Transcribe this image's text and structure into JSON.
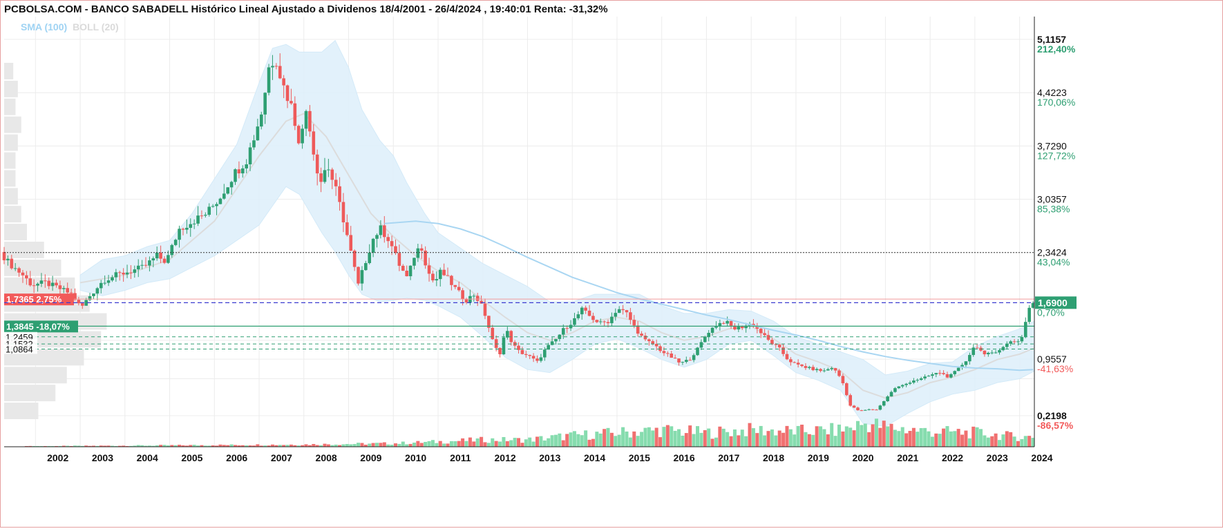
{
  "header": {
    "title": "PCBOLSA.COM - BANCO SABADELL Histórico Lineal Ajustado a Dividenos 18/4/2001 - 26/4/2024 , 19:40:01 Renta: -31,32%"
  },
  "legend": {
    "sma_label": "SMA (100)",
    "boll_label": "BOLL (20)"
  },
  "colors": {
    "up": "#2e9f72",
    "down": "#ee5a5a",
    "sma": "#a9d6f2",
    "band_fill": "#dff0fb",
    "band_mid": "#dcdcdc",
    "volume_up": "#86dcae",
    "volume_down": "#f07070",
    "grid": "#ececec",
    "blue_line": "#3a3ad0"
  },
  "chart_data": {
    "type": "candlestick",
    "title": "PCBOLSA.COM - BANCO SABADELL Histórico Lineal Ajustado a Dividenos 18/4/2001 - 26/4/2024 , 19:40:01 Renta: -31,32%",
    "x_label": "",
    "y_label": "",
    "x_range": [
      2001.3,
      2024.33
    ],
    "y_range": [
      0,
      5.4
    ],
    "x_ticks": [
      "2002",
      "2003",
      "2004",
      "2005",
      "2006",
      "2007",
      "2008",
      "2009",
      "2010",
      "2011",
      "2012",
      "2013",
      "2014",
      "2015",
      "2016",
      "2017",
      "2018",
      "2019",
      "2020",
      "2021",
      "2022",
      "2023",
      "2024"
    ],
    "y_axis_labels": [
      {
        "price": "5,1157",
        "pct": "212,40%",
        "value": 5.1157,
        "pct_color": "up",
        "bold": true
      },
      {
        "price": "4,4223",
        "pct": "170,06%",
        "value": 4.4223,
        "pct_color": "up",
        "bold": false
      },
      {
        "price": "3,7290",
        "pct": "127,72%",
        "value": 3.729,
        "pct_color": "up",
        "bold": false
      },
      {
        "price": "3,0357",
        "pct": "85,38%",
        "value": 3.0357,
        "pct_color": "up",
        "bold": false
      },
      {
        "price": "2,3424",
        "pct": "43,04%",
        "value": 2.3424,
        "pct_color": "up",
        "bold": false
      },
      {
        "price": "0,9557",
        "pct": "-41,63%",
        "value": 0.9557,
        "pct_color": "down",
        "bold": false
      },
      {
        "price": "0,2198",
        "pct": "-86,57%",
        "value": 0.2198,
        "pct_color": "down",
        "bold": true
      }
    ],
    "current": {
      "price": "1,6900",
      "pct": "0,70%",
      "value": 1.69
    },
    "reference_lines": [
      {
        "label": "1,7365",
        "pct": "2,75%",
        "value": 1.7365,
        "style": "red-box"
      },
      {
        "label": "1,3845",
        "pct": "-18,07%",
        "value": 1.3845,
        "style": "green-box"
      },
      {
        "label": "1,2459",
        "value": 1.2459,
        "style": "dashed"
      },
      {
        "label": "1,1532",
        "value": 1.1532,
        "style": "dashed"
      },
      {
        "label": "1,0864",
        "value": 1.0864,
        "style": "dashed"
      }
    ],
    "dotted_line": 2.3424,
    "price_path": [
      [
        2001.3,
        2.35
      ],
      [
        2001.5,
        2.2
      ],
      [
        2001.8,
        2.05
      ],
      [
        2002.0,
        1.92
      ],
      [
        2002.3,
        1.95
      ],
      [
        2002.6,
        1.88
      ],
      [
        2002.9,
        1.8
      ],
      [
        2003.1,
        1.62
      ],
      [
        2003.3,
        1.78
      ],
      [
        2003.6,
        1.98
      ],
      [
        2003.9,
        2.05
      ],
      [
        2004.2,
        2.1
      ],
      [
        2004.5,
        2.15
      ],
      [
        2004.8,
        2.3
      ],
      [
        2005.0,
        2.22
      ],
      [
        2005.3,
        2.65
      ],
      [
        2005.6,
        2.75
      ],
      [
        2005.9,
        2.85
      ],
      [
        2006.2,
        3.05
      ],
      [
        2006.5,
        3.35
      ],
      [
        2006.8,
        3.55
      ],
      [
        2007.0,
        3.9
      ],
      [
        2007.15,
        4.2
      ],
      [
        2007.3,
        4.75
      ],
      [
        2007.45,
        4.9
      ],
      [
        2007.6,
        4.55
      ],
      [
        2007.8,
        4.25
      ],
      [
        2008.0,
        3.75
      ],
      [
        2008.15,
        4.25
      ],
      [
        2008.3,
        3.65
      ],
      [
        2008.45,
        3.25
      ],
      [
        2008.6,
        3.5
      ],
      [
        2008.8,
        3.15
      ],
      [
        2009.0,
        2.7
      ],
      [
        2009.15,
        2.3
      ],
      [
        2009.3,
        1.92
      ],
      [
        2009.5,
        2.3
      ],
      [
        2009.65,
        2.55
      ],
      [
        2009.8,
        2.65
      ],
      [
        2010.0,
        2.5
      ],
      [
        2010.2,
        2.2
      ],
      [
        2010.4,
        2.0
      ],
      [
        2010.55,
        2.3
      ],
      [
        2010.7,
        2.45
      ],
      [
        2010.85,
        2.1
      ],
      [
        2011.0,
        1.95
      ],
      [
        2011.15,
        2.1
      ],
      [
        2011.3,
        2.0
      ],
      [
        2011.5,
        1.85
      ],
      [
        2011.7,
        1.72
      ],
      [
        2011.9,
        1.8
      ],
      [
        2012.1,
        1.6
      ],
      [
        2012.3,
        1.2
      ],
      [
        2012.45,
        1.0
      ],
      [
        2012.6,
        1.35
      ],
      [
        2012.75,
        1.15
      ],
      [
        2012.9,
        1.05
      ],
      [
        2013.1,
        1.0
      ],
      [
        2013.3,
        0.92
      ],
      [
        2013.5,
        1.1
      ],
      [
        2013.7,
        1.2
      ],
      [
        2013.9,
        1.35
      ],
      [
        2014.1,
        1.45
      ],
      [
        2014.3,
        1.6
      ],
      [
        2014.5,
        1.5
      ],
      [
        2014.7,
        1.42
      ],
      [
        2014.9,
        1.45
      ],
      [
        2015.1,
        1.62
      ],
      [
        2015.3,
        1.55
      ],
      [
        2015.5,
        1.35
      ],
      [
        2015.7,
        1.2
      ],
      [
        2015.9,
        1.15
      ],
      [
        2016.1,
        1.05
      ],
      [
        2016.3,
        0.98
      ],
      [
        2016.5,
        0.9
      ],
      [
        2016.7,
        0.95
      ],
      [
        2016.9,
        1.1
      ],
      [
        2017.1,
        1.3
      ],
      [
        2017.3,
        1.4
      ],
      [
        2017.5,
        1.45
      ],
      [
        2017.7,
        1.35
      ],
      [
        2017.9,
        1.38
      ],
      [
        2018.1,
        1.42
      ],
      [
        2018.3,
        1.3
      ],
      [
        2018.5,
        1.18
      ],
      [
        2018.7,
        1.1
      ],
      [
        2018.9,
        0.95
      ],
      [
        2019.1,
        0.88
      ],
      [
        2019.3,
        0.85
      ],
      [
        2019.5,
        0.82
      ],
      [
        2019.7,
        0.8
      ],
      [
        2019.9,
        0.85
      ],
      [
        2020.1,
        0.7
      ],
      [
        2020.3,
        0.35
      ],
      [
        2020.5,
        0.28
      ],
      [
        2020.7,
        0.3
      ],
      [
        2020.9,
        0.3
      ],
      [
        2021.1,
        0.45
      ],
      [
        2021.3,
        0.58
      ],
      [
        2021.5,
        0.62
      ],
      [
        2021.7,
        0.68
      ],
      [
        2021.9,
        0.7
      ],
      [
        2022.1,
        0.75
      ],
      [
        2022.3,
        0.78
      ],
      [
        2022.5,
        0.72
      ],
      [
        2022.7,
        0.82
      ],
      [
        2022.9,
        0.95
      ],
      [
        2023.1,
        1.15
      ],
      [
        2023.3,
        1.0
      ],
      [
        2023.5,
        1.05
      ],
      [
        2023.7,
        1.1
      ],
      [
        2023.9,
        1.2
      ],
      [
        2024.1,
        1.18
      ],
      [
        2024.33,
        1.69
      ]
    ],
    "sma_path": [
      [
        2009.8,
        2.72
      ],
      [
        2010.5,
        2.75
      ],
      [
        2011.0,
        2.72
      ],
      [
        2011.5,
        2.65
      ],
      [
        2012.0,
        2.55
      ],
      [
        2012.5,
        2.42
      ],
      [
        2013.0,
        2.28
      ],
      [
        2013.5,
        2.15
      ],
      [
        2014.0,
        2.02
      ],
      [
        2014.5,
        1.92
      ],
      [
        2015.0,
        1.82
      ],
      [
        2015.5,
        1.74
      ],
      [
        2016.0,
        1.67
      ],
      [
        2016.5,
        1.6
      ],
      [
        2017.0,
        1.53
      ],
      [
        2017.5,
        1.47
      ],
      [
        2018.0,
        1.4
      ],
      [
        2018.5,
        1.33
      ],
      [
        2019.0,
        1.27
      ],
      [
        2019.5,
        1.2
      ],
      [
        2020.0,
        1.12
      ],
      [
        2020.5,
        1.05
      ],
      [
        2021.0,
        0.99
      ],
      [
        2021.5,
        0.94
      ],
      [
        2022.0,
        0.9
      ],
      [
        2022.5,
        0.86
      ],
      [
        2023.0,
        0.84
      ],
      [
        2023.5,
        0.83
      ],
      [
        2024.0,
        0.81
      ],
      [
        2024.3,
        0.82
      ]
    ],
    "boll_upper": [
      [
        2003.0,
        2.05
      ],
      [
        2003.5,
        2.25
      ],
      [
        2004.0,
        2.3
      ],
      [
        2004.5,
        2.42
      ],
      [
        2005.0,
        2.5
      ],
      [
        2005.5,
        2.85
      ],
      [
        2006.0,
        3.3
      ],
      [
        2006.5,
        3.75
      ],
      [
        2007.0,
        4.55
      ],
      [
        2007.3,
        5.0
      ],
      [
        2007.6,
        5.05
      ],
      [
        2007.9,
        4.95
      ],
      [
        2008.4,
        4.95
      ],
      [
        2008.7,
        5.1
      ],
      [
        2009.0,
        4.75
      ],
      [
        2009.3,
        4.2
      ],
      [
        2009.7,
        3.8
      ],
      [
        2010.0,
        3.6
      ],
      [
        2010.3,
        3.25
      ],
      [
        2010.7,
        2.85
      ],
      [
        2011.0,
        2.6
      ],
      [
        2011.5,
        2.4
      ],
      [
        2012.0,
        2.2
      ],
      [
        2012.5,
        2.05
      ],
      [
        2013.0,
        1.9
      ],
      [
        2013.5,
        1.7
      ],
      [
        2014.0,
        1.7
      ],
      [
        2014.5,
        1.8
      ],
      [
        2015.0,
        1.8
      ],
      [
        2015.5,
        1.8
      ],
      [
        2016.0,
        1.65
      ],
      [
        2016.5,
        1.55
      ],
      [
        2017.0,
        1.55
      ],
      [
        2017.5,
        1.6
      ],
      [
        2018.0,
        1.58
      ],
      [
        2018.5,
        1.45
      ],
      [
        2019.0,
        1.25
      ],
      [
        2019.5,
        1.15
      ],
      [
        2020.0,
        1.05
      ],
      [
        2020.5,
        0.95
      ],
      [
        2021.0,
        0.75
      ],
      [
        2021.5,
        0.8
      ],
      [
        2022.0,
        0.9
      ],
      [
        2022.5,
        0.92
      ],
      [
        2023.0,
        1.12
      ],
      [
        2023.5,
        1.25
      ],
      [
        2024.0,
        1.35
      ],
      [
        2024.33,
        1.45
      ]
    ],
    "boll_lower": [
      [
        2003.0,
        1.85
      ],
      [
        2003.5,
        1.78
      ],
      [
        2004.0,
        1.85
      ],
      [
        2004.5,
        1.95
      ],
      [
        2005.0,
        2.0
      ],
      [
        2005.5,
        2.15
      ],
      [
        2006.0,
        2.3
      ],
      [
        2006.5,
        2.5
      ],
      [
        2007.0,
        2.7
      ],
      [
        2007.3,
        2.95
      ],
      [
        2007.6,
        3.2
      ],
      [
        2007.9,
        3.1
      ],
      [
        2008.4,
        2.6
      ],
      [
        2008.7,
        2.35
      ],
      [
        2009.0,
        2.05
      ],
      [
        2009.3,
        1.8
      ],
      [
        2009.7,
        1.7
      ],
      [
        2010.0,
        1.72
      ],
      [
        2010.3,
        1.75
      ],
      [
        2010.7,
        1.72
      ],
      [
        2011.0,
        1.65
      ],
      [
        2011.5,
        1.5
      ],
      [
        2012.0,
        1.25
      ],
      [
        2012.5,
        0.98
      ],
      [
        2013.0,
        0.82
      ],
      [
        2013.5,
        0.78
      ],
      [
        2014.0,
        0.95
      ],
      [
        2014.5,
        1.15
      ],
      [
        2015.0,
        1.22
      ],
      [
        2015.5,
        1.1
      ],
      [
        2016.0,
        0.95
      ],
      [
        2016.5,
        0.85
      ],
      [
        2017.0,
        0.95
      ],
      [
        2017.5,
        1.15
      ],
      [
        2018.0,
        1.2
      ],
      [
        2018.5,
        1.0
      ],
      [
        2019.0,
        0.78
      ],
      [
        2019.5,
        0.68
      ],
      [
        2020.0,
        0.55
      ],
      [
        2020.5,
        0.12
      ],
      [
        2021.0,
        0.08
      ],
      [
        2021.5,
        0.25
      ],
      [
        2022.0,
        0.4
      ],
      [
        2022.5,
        0.5
      ],
      [
        2023.0,
        0.55
      ],
      [
        2023.5,
        0.65
      ],
      [
        2024.0,
        0.7
      ],
      [
        2024.33,
        0.8
      ]
    ],
    "boll_middle": [
      [
        2003.0,
        1.95
      ],
      [
        2004.0,
        2.05
      ],
      [
        2005.0,
        2.25
      ],
      [
        2006.0,
        2.75
      ],
      [
        2007.0,
        3.6
      ],
      [
        2007.6,
        4.05
      ],
      [
        2008.0,
        4.15
      ],
      [
        2008.5,
        3.85
      ],
      [
        2009.0,
        3.35
      ],
      [
        2009.5,
        2.85
      ],
      [
        2010.0,
        2.55
      ],
      [
        2010.5,
        2.3
      ],
      [
        2011.0,
        2.1
      ],
      [
        2011.5,
        1.95
      ],
      [
        2012.0,
        1.72
      ],
      [
        2012.5,
        1.5
      ],
      [
        2013.0,
        1.3
      ],
      [
        2013.5,
        1.2
      ],
      [
        2014.0,
        1.3
      ],
      [
        2014.5,
        1.45
      ],
      [
        2015.0,
        1.5
      ],
      [
        2015.5,
        1.45
      ],
      [
        2016.0,
        1.3
      ],
      [
        2016.5,
        1.2
      ],
      [
        2017.0,
        1.25
      ],
      [
        2017.5,
        1.35
      ],
      [
        2018.0,
        1.38
      ],
      [
        2018.5,
        1.22
      ],
      [
        2019.0,
        1.02
      ],
      [
        2019.5,
        0.92
      ],
      [
        2020.0,
        0.8
      ],
      [
        2020.5,
        0.55
      ],
      [
        2021.0,
        0.45
      ],
      [
        2021.5,
        0.52
      ],
      [
        2022.0,
        0.65
      ],
      [
        2022.5,
        0.72
      ],
      [
        2023.0,
        0.82
      ],
      [
        2023.5,
        0.95
      ],
      [
        2024.0,
        1.02
      ],
      [
        2024.33,
        1.1
      ]
    ],
    "volume_profile": [
      0.08,
      0.12,
      0.1,
      0.15,
      0.12,
      0.1,
      0.1,
      0.12,
      0.15,
      0.2,
      0.35,
      0.5,
      0.62,
      0.75,
      0.9,
      0.85,
      0.7,
      0.55,
      0.45,
      0.3
    ],
    "volume_series": [
      [
        2002.0,
        0.02
      ],
      [
        2004.0,
        0.04
      ],
      [
        2006.0,
        0.06
      ],
      [
        2007.0,
        0.07
      ],
      [
        2008.0,
        0.08
      ],
      [
        2009.0,
        0.1
      ],
      [
        2010.0,
        0.12
      ],
      [
        2011.0,
        0.18
      ],
      [
        2012.0,
        0.25
      ],
      [
        2013.0,
        0.25
      ],
      [
        2014.0,
        0.4
      ],
      [
        2015.0,
        0.5
      ],
      [
        2016.0,
        0.6
      ],
      [
        2017.0,
        0.5
      ],
      [
        2018.0,
        0.6
      ],
      [
        2019.0,
        0.55
      ],
      [
        2020.0,
        0.6
      ],
      [
        2020.6,
        0.85
      ],
      [
        2021.0,
        0.7
      ],
      [
        2022.0,
        0.55
      ],
      [
        2023.0,
        0.5
      ],
      [
        2024.0,
        0.35
      ]
    ]
  }
}
